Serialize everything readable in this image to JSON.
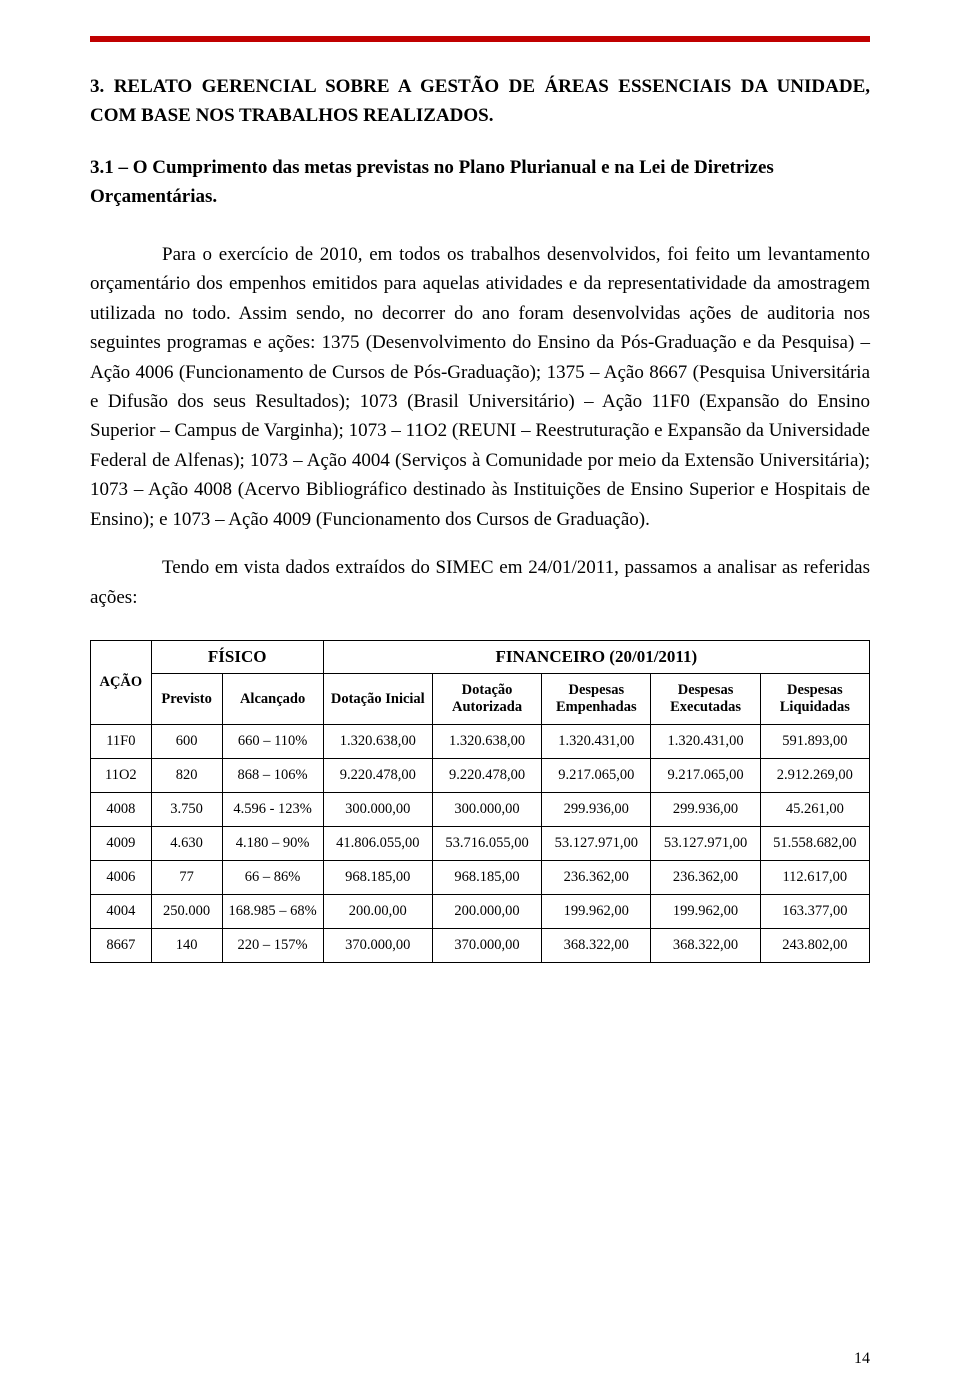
{
  "accent_color": "#c00000",
  "heading": "3. RELATO GERENCIAL SOBRE A GESTÃO DE ÁREAS ESSENCIAIS DA UNIDADE, COM BASE NOS TRABALHOS REALIZADOS.",
  "subheading": "3.1 – O Cumprimento das metas previstas no Plano Plurianual e na Lei de Diretrizes Orçamentárias.",
  "paragraph1": "Para o exercício de 2010, em todos os trabalhos desenvolvidos, foi feito um levantamento orçamentário dos empenhos emitidos para aquelas atividades e da representatividade da amostragem utilizada no todo. Assim sendo, no decorrer do ano foram desenvolvidas ações de auditoria nos seguintes programas e ações: 1375 (Desenvolvimento do Ensino da Pós-Graduação e da Pesquisa) – Ação 4006 (Funcionamento de Cursos de Pós-Graduação); 1375 – Ação 8667 (Pesquisa Universitária e Difusão dos seus Resultados); 1073 (Brasil Universitário) – Ação 11F0 (Expansão do Ensino Superior – Campus de Varginha); 1073 – 11O2 (REUNI – Reestruturação e Expansão da Universidade Federal de Alfenas); 1073 – Ação 4004 (Serviços à Comunidade por meio da Extensão Universitária); 1073 – Ação 4008 (Acervo Bibliográfico destinado às Instituições de Ensino Superior e Hospitais de Ensino); e 1073 – Ação 4009 (Funcionamento dos Cursos de Graduação).",
  "paragraph2": "Tendo em vista dados extraídos do SIMEC em 24/01/2011, passamos a analisar as referidas ações:",
  "table": {
    "group_headers": {
      "fisico": "FÍSICO",
      "financeiro": "FINANCEIRO (20/01/2011)"
    },
    "columns": {
      "acao": "AÇÃO",
      "previsto": "Previsto",
      "alcancado": "Alcançado",
      "dot_inicial": "Dotação Inicial",
      "dot_autorizada": "Dotação Autorizada",
      "desp_empenhadas": "Despesas Empenhadas",
      "desp_executadas": "Despesas Executadas",
      "desp_liquidadas": "Despesas Liquidadas"
    },
    "rows": [
      {
        "acao": "11F0",
        "previsto": "600",
        "alcancado": "660 – 110%",
        "di": "1.320.638,00",
        "da": "1.320.638,00",
        "de": "1.320.431,00",
        "dx": "1.320.431,00",
        "dl": "591.893,00"
      },
      {
        "acao": "11O2",
        "previsto": "820",
        "alcancado": "868 – 106%",
        "di": "9.220.478,00",
        "da": "9.220.478,00",
        "de": "9.217.065,00",
        "dx": "9.217.065,00",
        "dl": "2.912.269,00"
      },
      {
        "acao": "4008",
        "previsto": "3.750",
        "alcancado": "4.596 - 123%",
        "di": "300.000,00",
        "da": "300.000,00",
        "de": "299.936,00",
        "dx": "299.936,00",
        "dl": "45.261,00"
      },
      {
        "acao": "4009",
        "previsto": "4.630",
        "alcancado": "4.180 – 90%",
        "di": "41.806.055,00",
        "da": "53.716.055,00",
        "de": "53.127.971,00",
        "dx": "53.127.971,00",
        "dl": "51.558.682,00"
      },
      {
        "acao": "4006",
        "previsto": "77",
        "alcancado": "66 – 86%",
        "di": "968.185,00",
        "da": "968.185,00",
        "de": "236.362,00",
        "dx": "236.362,00",
        "dl": "112.617,00"
      },
      {
        "acao": "4004",
        "previsto": "250.000",
        "alcancado": "168.985 – 68%",
        "di": "200.00,00",
        "da": "200.000,00",
        "de": "199.962,00",
        "dx": "199.962,00",
        "dl": "163.377,00"
      },
      {
        "acao": "8667",
        "previsto": "140",
        "alcancado": "220 – 157%",
        "di": "370.000,00",
        "da": "370.000,00",
        "de": "368.322,00",
        "dx": "368.322,00",
        "dl": "243.802,00"
      }
    ]
  },
  "page_number": "14"
}
